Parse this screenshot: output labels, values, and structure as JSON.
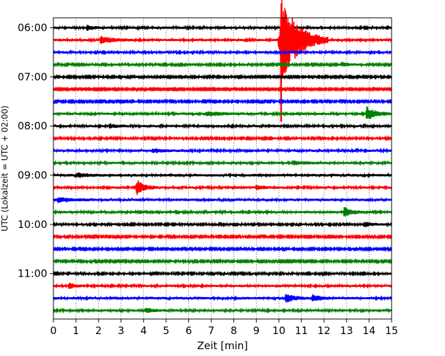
{
  "chart_data": {
    "type": "line",
    "title": "",
    "xlabel": "Zeit  [min]",
    "ylabel": "UTC (Lokalzeit = UTC + 02:00)",
    "xlim": [
      0,
      15
    ],
    "x_ticks": [
      "0",
      "1",
      "2",
      "3",
      "4",
      "5",
      "6",
      "7",
      "8",
      "9",
      "10",
      "11",
      "12",
      "13",
      "14",
      "15"
    ],
    "y_ticks": [
      {
        "label": "06:00",
        "trace": 0
      },
      {
        "label": "07:00",
        "trace": 4
      },
      {
        "label": "08:00",
        "trace": 8
      },
      {
        "label": "09:00",
        "trace": 12
      },
      {
        "label": "10:00",
        "trace": 16
      },
      {
        "label": "11:00",
        "trace": 20
      }
    ],
    "grid": "vertical dotted lines at each minute",
    "trace_interval_min": 15,
    "colors": [
      "#000000",
      "#ff0000",
      "#0000ff",
      "#008000"
    ],
    "traces": [
      {
        "start": "06:00",
        "amp": 0.22,
        "events": [
          {
            "x": 1.5,
            "amp": 0.4,
            "dur": 0.2
          }
        ]
      },
      {
        "start": "06:15",
        "amp": 0.22,
        "events": [
          {
            "x": 2.1,
            "amp": 0.5,
            "dur": 0.5
          },
          {
            "x": 10.1,
            "amp": 7.0,
            "dur": 0.7,
            "spike": true
          }
        ]
      },
      {
        "start": "06:30",
        "amp": 0.22,
        "events": []
      },
      {
        "start": "06:45",
        "amp": 0.2,
        "events": [
          {
            "x": 12.8,
            "amp": 0.3,
            "dur": 0.3
          }
        ]
      },
      {
        "start": "07:00",
        "amp": 0.18,
        "events": []
      },
      {
        "start": "07:15",
        "amp": 0.16,
        "events": []
      },
      {
        "start": "07:30",
        "amp": 0.18,
        "events": []
      },
      {
        "start": "07:45",
        "amp": 0.22,
        "events": [
          {
            "x": 13.9,
            "amp": 1.1,
            "dur": 0.35
          },
          {
            "x": 6.8,
            "amp": 0.3,
            "dur": 0.6
          }
        ]
      },
      {
        "start": "08:00",
        "amp": 0.22,
        "events": [
          {
            "x": 2.5,
            "amp": 0.3,
            "dur": 0.3
          }
        ]
      },
      {
        "start": "08:15",
        "amp": 0.2,
        "events": []
      },
      {
        "start": "08:30",
        "amp": 0.22,
        "events": [
          {
            "x": 4.4,
            "amp": 0.3,
            "dur": 0.4
          }
        ]
      },
      {
        "start": "08:45",
        "amp": 0.22,
        "events": [
          {
            "x": 10.6,
            "amp": 0.3,
            "dur": 0.5
          }
        ]
      },
      {
        "start": "09:00",
        "amp": 0.24,
        "events": [
          {
            "x": 1.1,
            "amp": 0.3,
            "dur": 0.4
          }
        ]
      },
      {
        "start": "09:15",
        "amp": 0.22,
        "events": [
          {
            "x": 3.7,
            "amp": 1.2,
            "dur": 0.3
          },
          {
            "x": 9.0,
            "amp": 0.3,
            "dur": 0.4
          }
        ]
      },
      {
        "start": "09:30",
        "amp": 0.24,
        "events": [
          {
            "x": 0.2,
            "amp": 0.3,
            "dur": 0.6
          }
        ]
      },
      {
        "start": "09:45",
        "amp": 0.22,
        "events": [
          {
            "x": 12.9,
            "amp": 0.7,
            "dur": 0.3
          }
        ]
      },
      {
        "start": "10:00",
        "amp": 0.2,
        "events": [
          {
            "x": 13.8,
            "amp": 0.4,
            "dur": 0.3
          }
        ]
      },
      {
        "start": "10:15",
        "amp": 0.18,
        "events": []
      },
      {
        "start": "10:30",
        "amp": 0.18,
        "events": []
      },
      {
        "start": "10:45",
        "amp": 0.18,
        "events": []
      },
      {
        "start": "11:00",
        "amp": 0.2,
        "events": []
      },
      {
        "start": "11:15",
        "amp": 0.22,
        "events": [
          {
            "x": 0.7,
            "amp": 0.5,
            "dur": 0.25
          }
        ]
      },
      {
        "start": "11:30",
        "amp": 0.24,
        "events": [
          {
            "x": 10.3,
            "amp": 0.6,
            "dur": 0.4
          },
          {
            "x": 11.5,
            "amp": 0.5,
            "dur": 0.3
          }
        ]
      },
      {
        "start": "11:45",
        "amp": 0.22,
        "events": [
          {
            "x": 4.1,
            "amp": 0.3,
            "dur": 0.4
          }
        ]
      }
    ]
  }
}
